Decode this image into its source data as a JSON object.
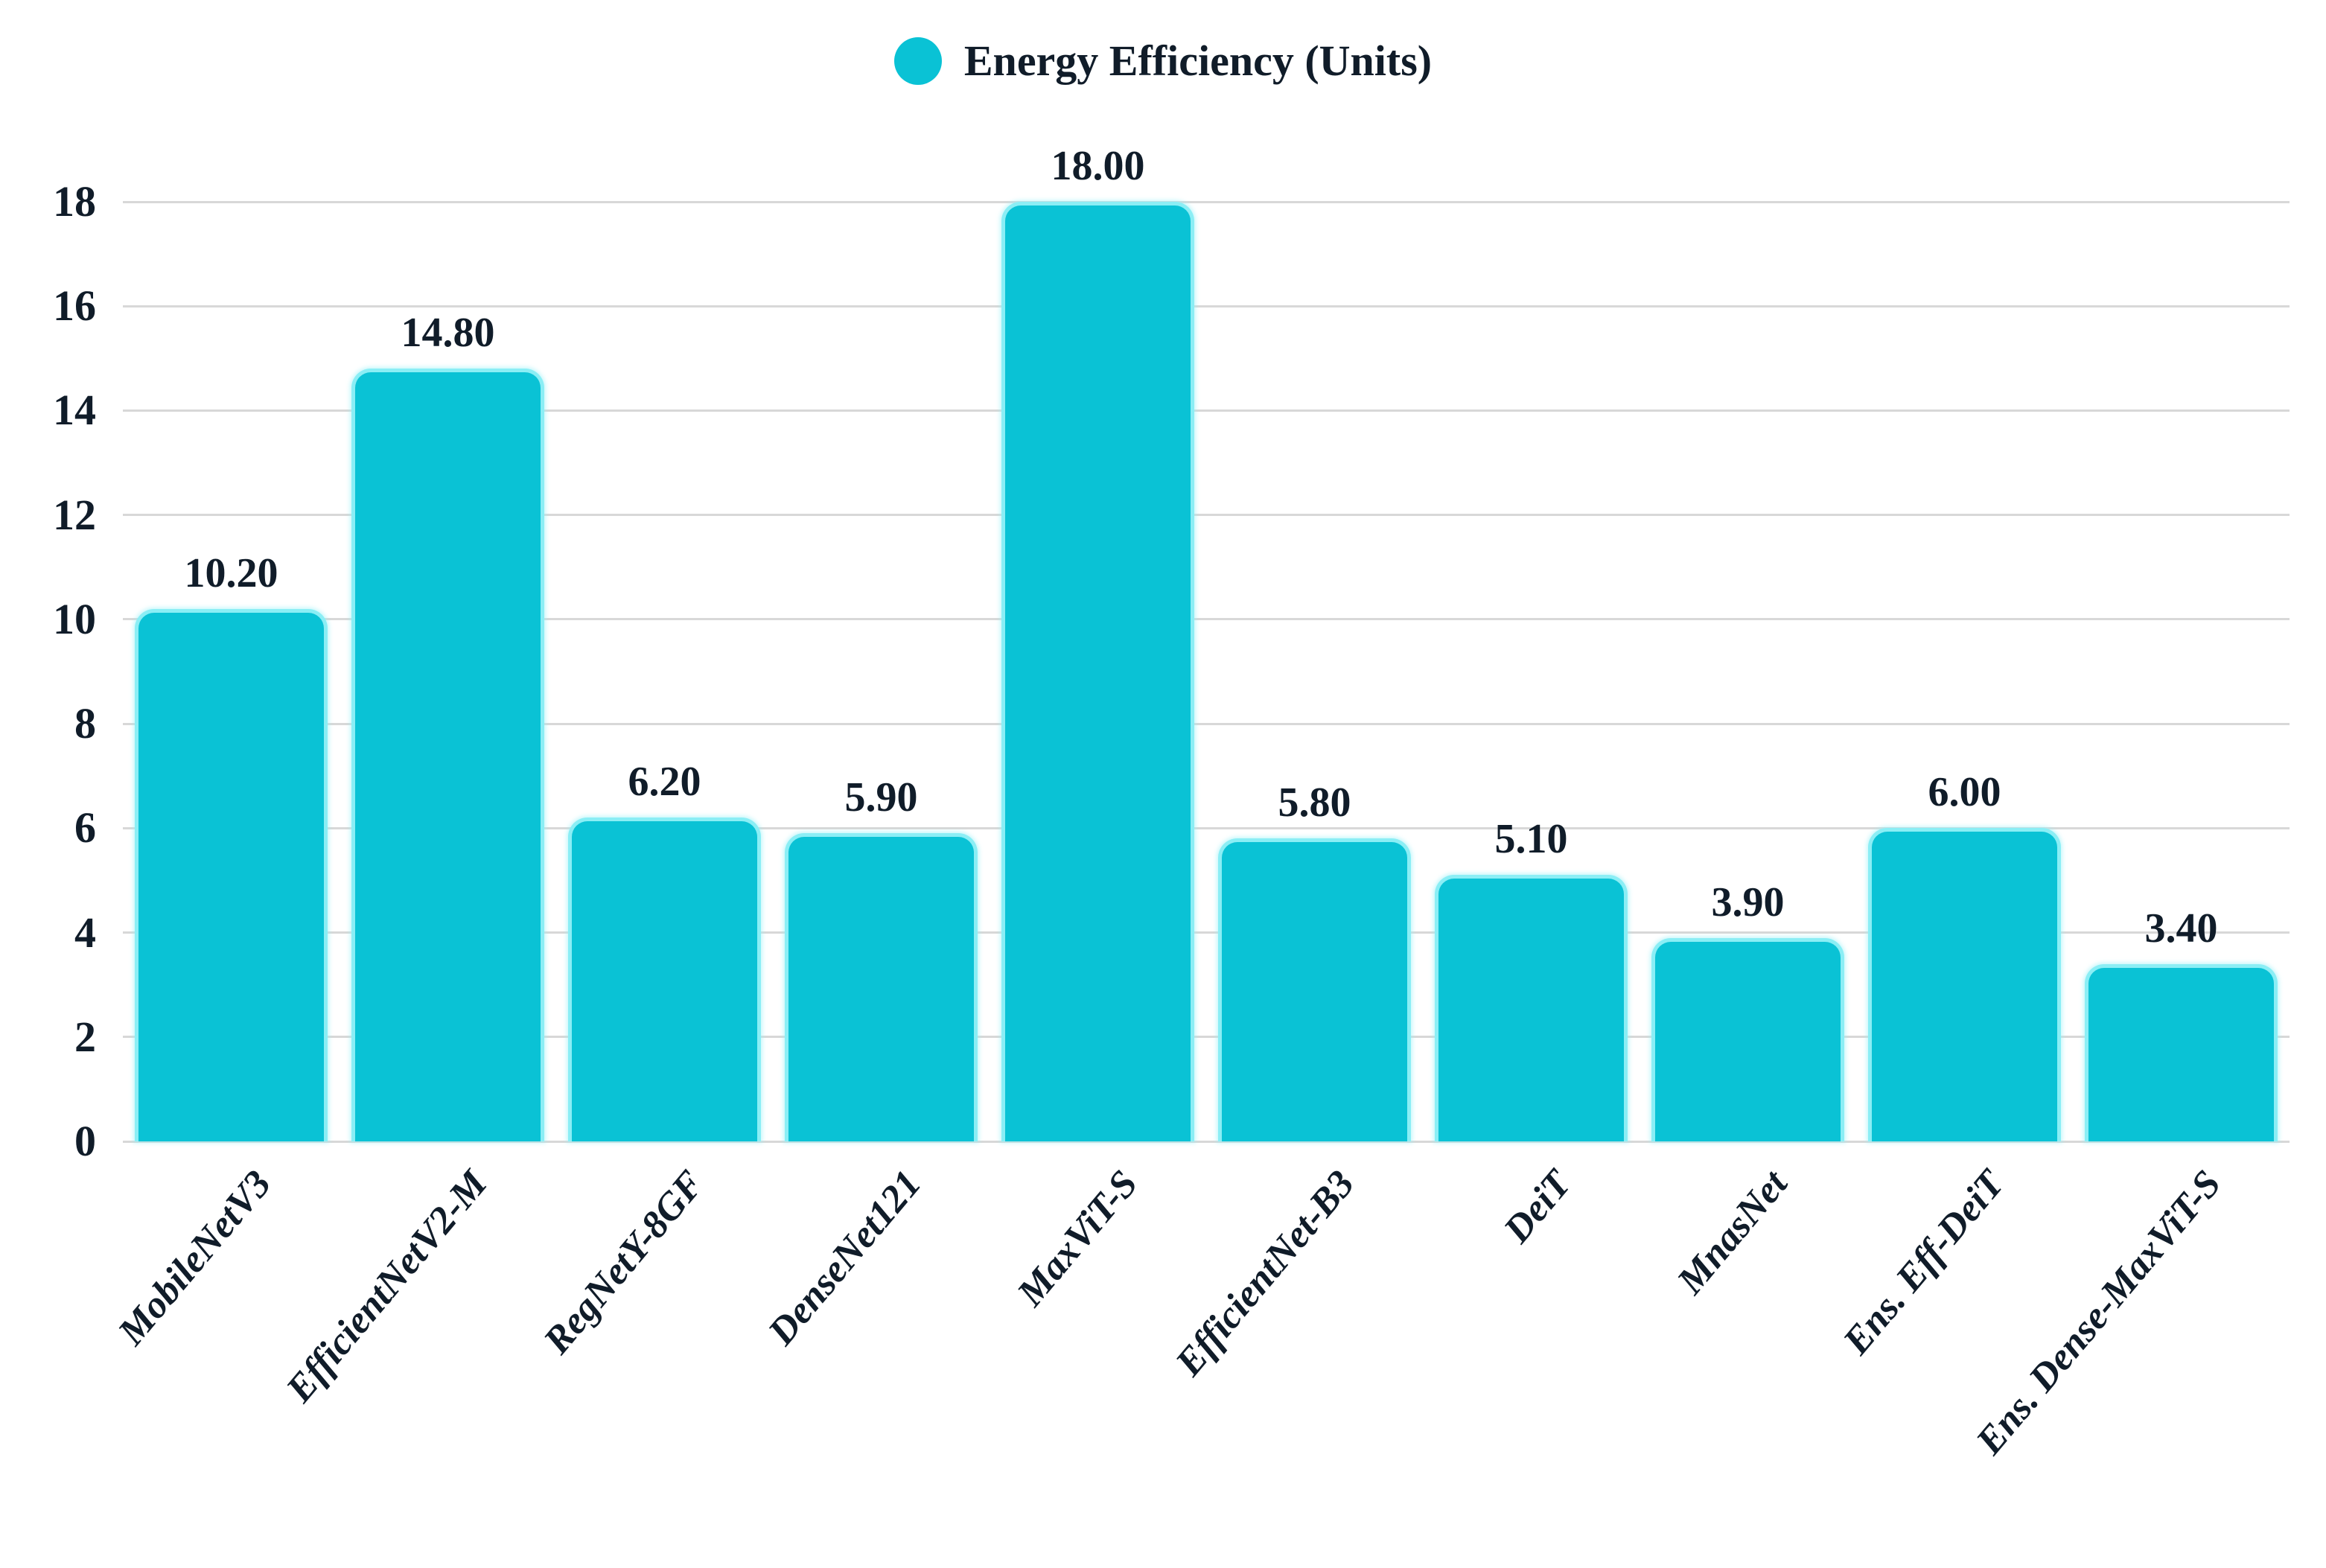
{
  "chart_data": {
    "type": "bar",
    "title": "",
    "legend_label": "Energy Efficiency (Units)",
    "legend_position": "top-center",
    "categories": [
      "MobileNetV3",
      "EfficientNetV2-M",
      "RegNetY-8GF",
      "DenseNet121",
      "MaxViT-S",
      "EfficientNet-B3",
      "DeiT",
      "MnasNet",
      "Ens. Eff-DeiT",
      "Ens. Dense-MaxViT-S"
    ],
    "values": [
      10.2,
      14.8,
      6.2,
      5.9,
      18.0,
      5.8,
      5.1,
      3.9,
      6.0,
      3.4
    ],
    "value_labels": [
      "10.20",
      "14.80",
      "6.20",
      "5.90",
      "18.00",
      "5.80",
      "5.10",
      "3.90",
      "6.00",
      "3.40"
    ],
    "xlabel": "",
    "ylabel": "",
    "ylim": [
      0,
      18
    ],
    "yticks": [
      0,
      2,
      4,
      6,
      8,
      10,
      12,
      14,
      16,
      18
    ],
    "grid": "horizontal-only",
    "x_tick_rotation_deg": 50,
    "colors": {
      "bar_fill": "#0ac2d5",
      "bar_edge": "#8beef5",
      "grid_line": "#d8d8d8",
      "text": "#101c29",
      "background": "#ffffff"
    }
  }
}
